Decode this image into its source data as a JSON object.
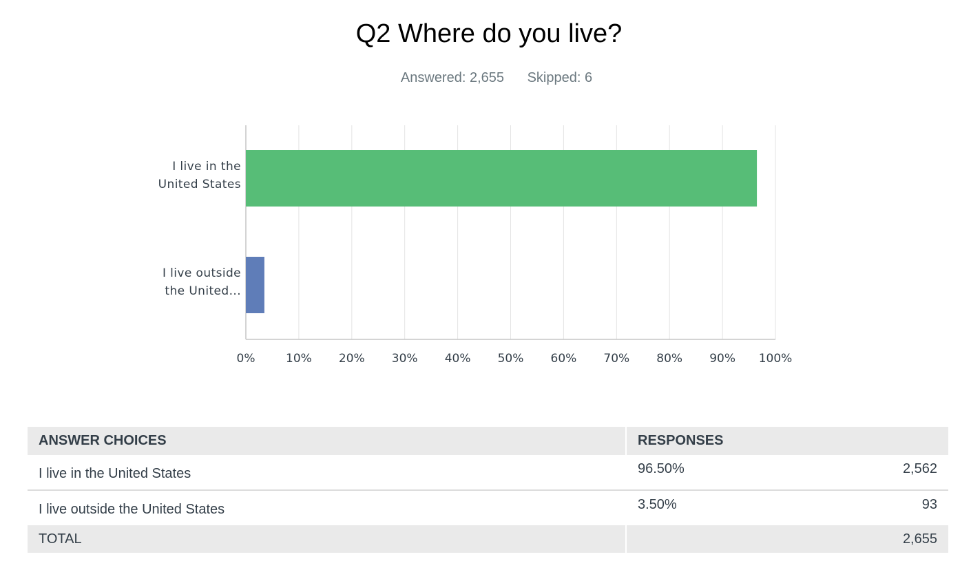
{
  "question": {
    "title": "Q2 Where do you live?",
    "answered": "Answered: 2,655",
    "skipped": "Skipped: 6"
  },
  "chart_data": {
    "type": "bar",
    "orientation": "horizontal",
    "categories": [
      [
        "I live in the",
        "United States"
      ],
      [
        "I live outside",
        "the United..."
      ]
    ],
    "values": [
      96.5,
      3.5
    ],
    "colors": [
      "#57bd77",
      "#5f7db8"
    ],
    "xlim": [
      0,
      100
    ],
    "xticks": [
      "0%",
      "10%",
      "20%",
      "30%",
      "40%",
      "50%",
      "60%",
      "70%",
      "80%",
      "90%",
      "100%"
    ],
    "grid": true
  },
  "table": {
    "headers": {
      "choices": "ANSWER CHOICES",
      "responses": "RESPONSES"
    },
    "rows": [
      {
        "choice": "I live in the United States",
        "percent": "96.50%",
        "count": "2,562"
      },
      {
        "choice": "I live outside the United States",
        "percent": "3.50%",
        "count": "93"
      }
    ],
    "total": {
      "label": "TOTAL",
      "count": "2,655"
    }
  }
}
